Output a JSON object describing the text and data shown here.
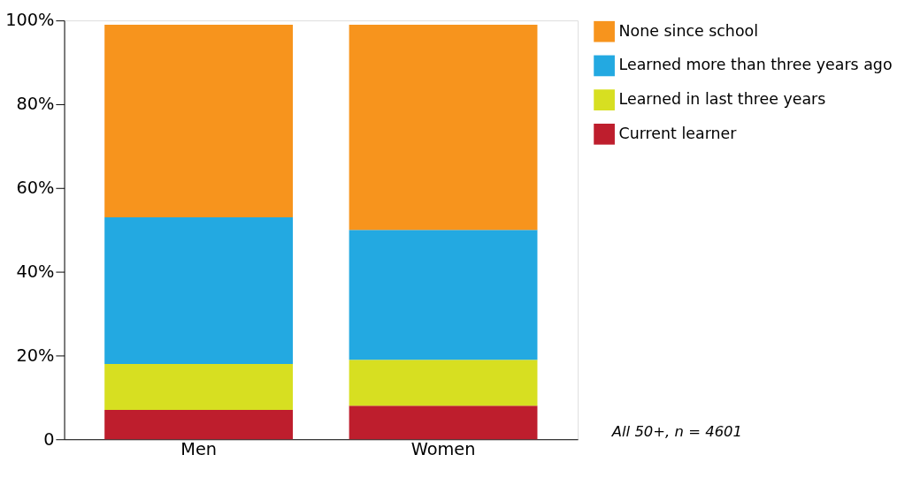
{
  "chart_data": {
    "type": "bar",
    "stacked": true,
    "categories": [
      "Men",
      "Women"
    ],
    "series": [
      {
        "name": "Current learner",
        "color": "#be1e2d",
        "values": [
          7,
          8
        ]
      },
      {
        "name": "Learned in last three years",
        "color": "#d7df21",
        "values": [
          11,
          11
        ]
      },
      {
        "name": "Learned more than three years ago",
        "color": "#23a9e1",
        "values": [
          35,
          31
        ]
      },
      {
        "name": "None since school",
        "color": "#f7941d",
        "values": [
          46,
          49
        ]
      }
    ],
    "ylim": [
      0,
      100
    ],
    "yticks": [
      0,
      {
        "value": 20,
        "label": "20%"
      },
      {
        "value": 40,
        "label": "40%"
      },
      {
        "value": 60,
        "label": "60%"
      },
      {
        "value": 80,
        "label": "80%"
      },
      {
        "value": 100,
        "label": "100%"
      }
    ],
    "grid": false,
    "legend": "right",
    "annotations": [
      "All 50+, n = 4601"
    ]
  }
}
